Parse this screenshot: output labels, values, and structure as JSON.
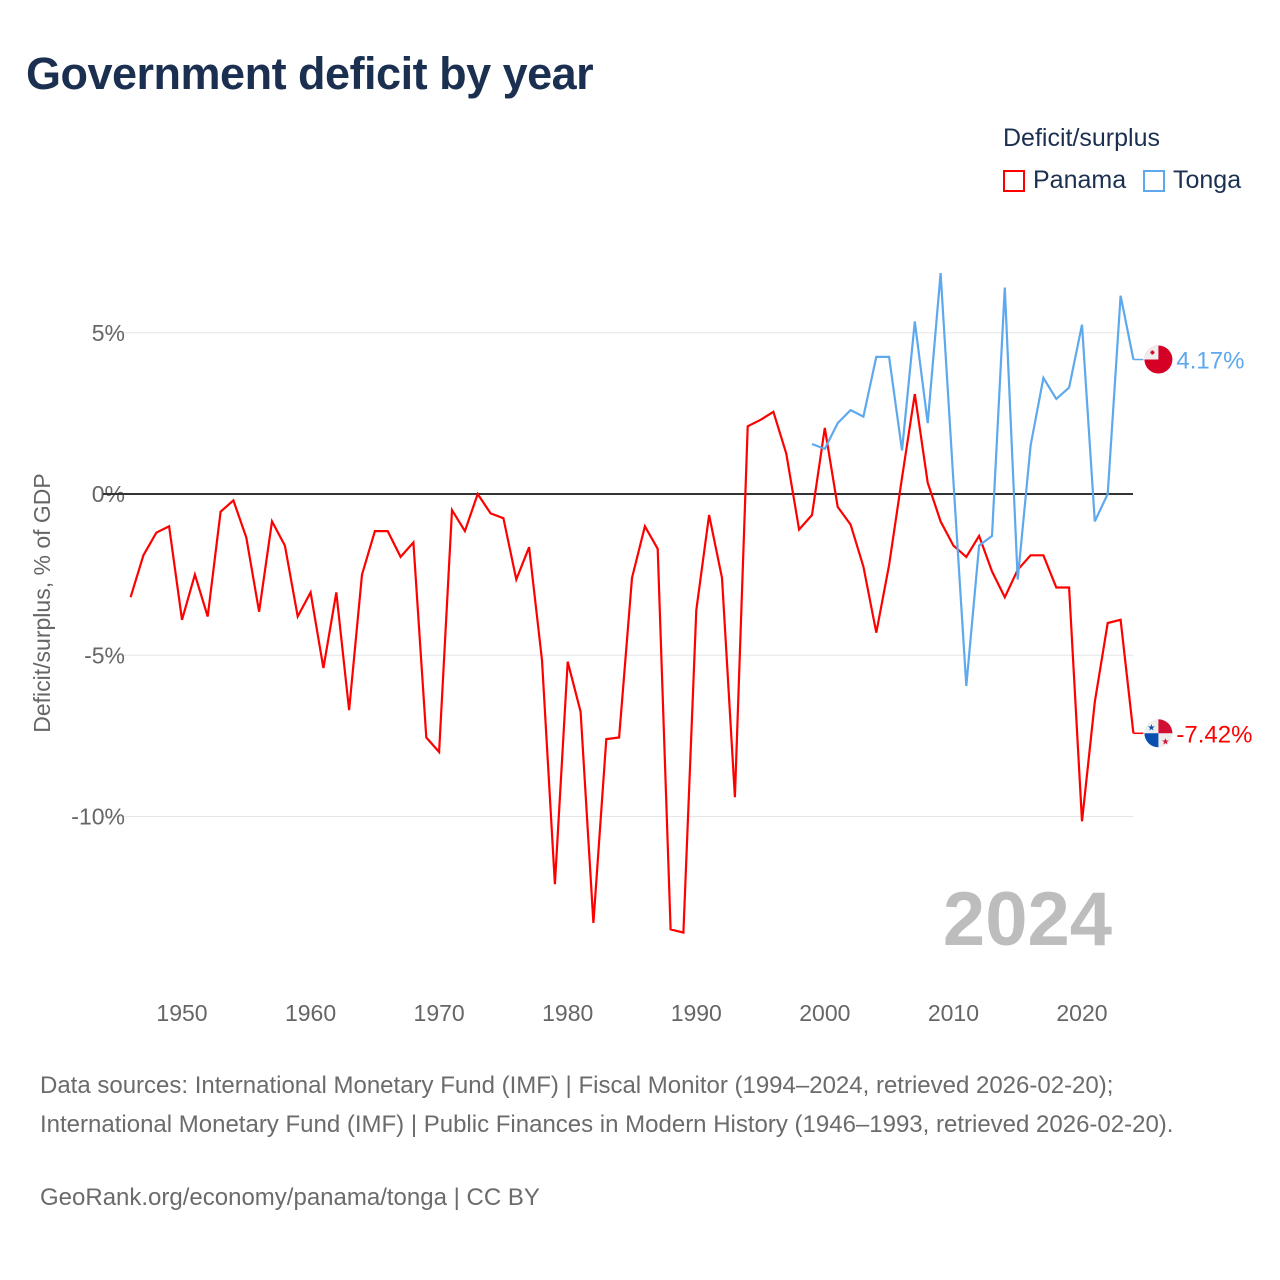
{
  "title": "Government deficit by year",
  "legend": {
    "title": "Deficit/surplus",
    "items": [
      {
        "name": "Panama",
        "color": "#ff0000"
      },
      {
        "name": "Tonga",
        "color": "#5ea8ee"
      }
    ]
  },
  "chart_data": {
    "type": "line",
    "title": "Government deficit by year",
    "xlabel": "",
    "ylabel": "Deficit/surplus, % of GDP",
    "xlim": [
      1946,
      2024
    ],
    "ylim": [
      -14.5,
      7.2
    ],
    "xticks": [
      1950,
      1960,
      1970,
      1980,
      1990,
      2000,
      2010,
      2020
    ],
    "xtick_labels": [
      "1950",
      "1960",
      "1970",
      "1980",
      "1990",
      "2000",
      "2010",
      "2020"
    ],
    "yticks": [
      5,
      0,
      -5,
      -10
    ],
    "ytick_labels": [
      "5%",
      "0%",
      "-5%",
      "-10%"
    ],
    "grid": true,
    "legend_position": "top-right",
    "year_watermark": "2024",
    "series": [
      {
        "name": "Panama",
        "color": "#ff0000",
        "end_label": "-7.42%",
        "start_year": 1946,
        "values": [
          -3.2,
          -1.9,
          -1.2,
          -1.0,
          -3.9,
          -2.5,
          -3.8,
          -0.55,
          -0.2,
          -1.35,
          -3.65,
          -0.85,
          -1.6,
          -3.8,
          -3.05,
          -5.4,
          -3.05,
          -6.7,
          -2.5,
          -1.15,
          -1.15,
          -1.95,
          -1.5,
          -7.55,
          -8.0,
          -0.5,
          -1.15,
          0.0,
          -0.6,
          -0.75,
          -2.65,
          -1.65,
          -5.15,
          -12.1,
          -5.2,
          -6.75,
          -13.3,
          -7.6,
          -7.55,
          -2.6,
          -1.0,
          -1.7,
          -13.5,
          -13.6,
          -3.6,
          -0.65,
          -2.6,
          -9.4,
          2.1,
          2.3,
          2.55,
          1.25,
          -1.1,
          -0.65,
          2.05,
          -0.4,
          -0.95,
          -2.25,
          -4.3,
          -2.2,
          0.5,
          3.1,
          0.35,
          -0.85,
          -1.6,
          -1.95,
          -1.3,
          -2.4,
          -3.2,
          -2.35,
          -1.9,
          -1.9,
          -2.9,
          -2.9,
          -10.15,
          -6.45,
          -4.0,
          -3.9,
          -7.42
        ]
      },
      {
        "name": "Tonga",
        "color": "#5ea8ee",
        "end_label": "4.17%",
        "start_year": 1999,
        "values": [
          1.55,
          1.4,
          2.2,
          2.6,
          2.4,
          4.25,
          4.25,
          1.35,
          5.35,
          2.2,
          6.85,
          0.4,
          -5.95,
          -1.6,
          -1.3,
          6.4,
          -2.65,
          1.5,
          3.6,
          2.95,
          3.3,
          5.25,
          -0.85,
          0.0,
          6.15,
          4.17
        ]
      }
    ]
  },
  "footer": {
    "sources": "Data sources: International Monetary Fund (IMF) | Fiscal Monitor (1994–2024, retrieved 2026-02-20); International Monetary Fund (IMF) | Public Finances in Modern History (1946–1993, retrieved 2026-02-20).",
    "credit": "GeoRank.org/economy/panama/tonga | CC BY"
  }
}
